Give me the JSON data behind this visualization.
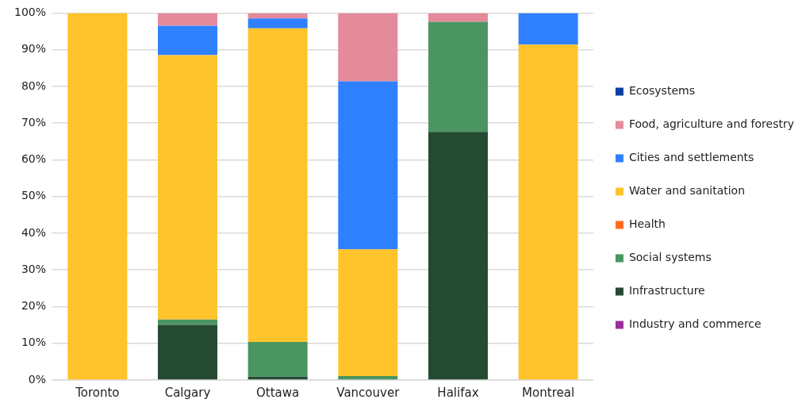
{
  "chart_data": {
    "type": "bar",
    "stacked": true,
    "categories": [
      "Toronto",
      "Calgary",
      "Ottawa",
      "Vancouver",
      "Halifax",
      "Montreal"
    ],
    "series": [
      {
        "name": "Industry and commerce",
        "color": "#9b2f9b",
        "values": [
          0,
          0,
          0,
          0,
          0,
          0
        ]
      },
      {
        "name": "Infrastructure",
        "color": "#254a32",
        "values": [
          0,
          15,
          0.9,
          0,
          67.6,
          0
        ]
      },
      {
        "name": "Social systems",
        "color": "#4a9562",
        "values": [
          0,
          1.5,
          9.5,
          1.1,
          30,
          0
        ]
      },
      {
        "name": "Health",
        "color": "#ff6a1f",
        "values": [
          0,
          0,
          0,
          0,
          0,
          0
        ]
      },
      {
        "name": "Water and sanitation",
        "color": "#ffc42b",
        "values": [
          100,
          72,
          85.4,
          34.5,
          0,
          91.4
        ]
      },
      {
        "name": "Cities and settlements",
        "color": "#2f80ff",
        "values": [
          0,
          8,
          2.7,
          45.8,
          0,
          8.6
        ]
      },
      {
        "name": "Food, agriculture and forestry",
        "color": "#e48a9a",
        "values": [
          0,
          3.5,
          1.5,
          18.6,
          2.4,
          0
        ]
      },
      {
        "name": "Ecosystems",
        "color": "#0b3fa0",
        "values": [
          0,
          0,
          0,
          0,
          0,
          0
        ]
      }
    ],
    "ylim": [
      0,
      100
    ],
    "yticks": [
      {
        "value": 0,
        "label": "0%"
      },
      {
        "value": 10,
        "label": "10%"
      },
      {
        "value": 20,
        "label": "20%"
      },
      {
        "value": 30,
        "label": "30%"
      },
      {
        "value": 40,
        "label": "40%"
      },
      {
        "value": 50,
        "label": "50%"
      },
      {
        "value": 60,
        "label": "60%"
      },
      {
        "value": 70,
        "label": "70%"
      },
      {
        "value": 80,
        "label": "80%"
      },
      {
        "value": 90,
        "label": "90%"
      },
      {
        "value": 100,
        "label": "100%"
      }
    ],
    "grid": "y",
    "legend": "right"
  }
}
